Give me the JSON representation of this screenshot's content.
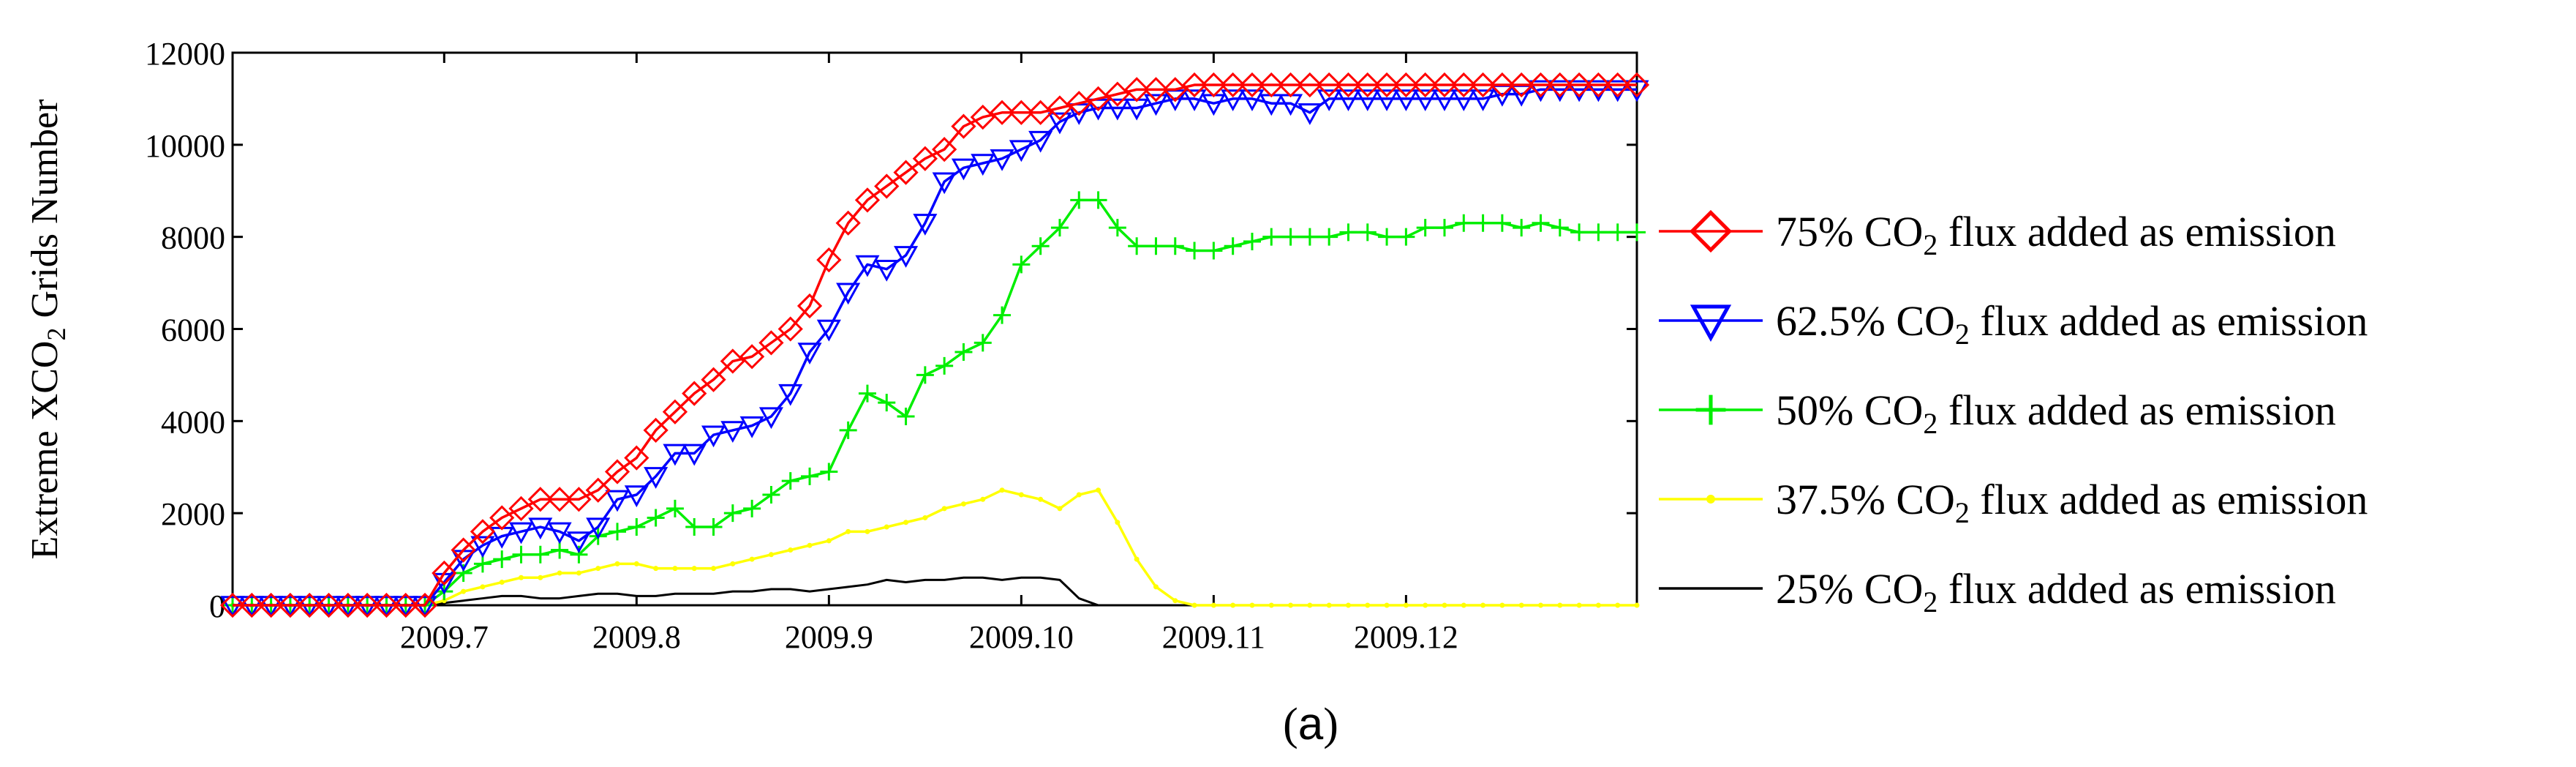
{
  "chart_data": {
    "type": "line",
    "title": "",
    "xlabel": "",
    "ylabel": "Extreme XCO2 Grids Number",
    "ylabel_parts": {
      "before": "Extreme XCO",
      "sub": "2",
      "after": " Grids Number"
    },
    "caption": {
      "open": "(",
      "letter": "a",
      "close": ")"
    },
    "ylim": [
      0,
      12000
    ],
    "yticks": [
      0,
      2000,
      4000,
      6000,
      8000,
      10000,
      12000
    ],
    "ytick_labels": [
      "0",
      "2000",
      "4000",
      "6000",
      "8000",
      "10000",
      "12000"
    ],
    "xlim": [
      0,
      73
    ],
    "xticks": [
      11,
      21,
      31,
      41,
      51,
      61
    ],
    "xtick_labels": [
      "2009.7",
      "2009.8",
      "2009.9",
      "2009.10",
      "2009.11",
      "2009.12"
    ],
    "grid": false,
    "legend_position": "right",
    "series": [
      {
        "name": "75% CO2 flux added as emission",
        "label_before": "75% CO",
        "label_sub": "2",
        "label_after": " flux added as emission",
        "color": "#ff0000",
        "marker": "diamond",
        "values": [
          0,
          0,
          0,
          0,
          0,
          0,
          0,
          0,
          0,
          0,
          0,
          700,
          1200,
          1600,
          1900,
          2100,
          2300,
          2300,
          2300,
          2500,
          2900,
          3200,
          3800,
          4200,
          4600,
          4900,
          5300,
          5400,
          5700,
          6000,
          6500,
          7500,
          8300,
          8800,
          9100,
          9400,
          9700,
          9900,
          10400,
          10600,
          10700,
          10700,
          10700,
          10800,
          10900,
          11000,
          11100,
          11200,
          11200,
          11200,
          11300,
          11300,
          11300,
          11300,
          11300,
          11300,
          11300,
          11300,
          11300,
          11300,
          11300,
          11300,
          11300,
          11300,
          11300,
          11300,
          11300,
          11300,
          11300,
          11300,
          11300,
          11300,
          11300,
          11300
        ]
      },
      {
        "name": "62.5% CO2 flux  added as emission",
        "label_before": "62.5% CO",
        "label_sub": "2",
        "label_after": " flux  added as emission",
        "color": "#0000ff",
        "marker": "triangle-down",
        "values": [
          0,
          0,
          0,
          0,
          0,
          0,
          0,
          0,
          0,
          0,
          0,
          500,
          1000,
          1300,
          1500,
          1600,
          1700,
          1600,
          1400,
          1700,
          2300,
          2400,
          2800,
          3300,
          3300,
          3700,
          3800,
          3900,
          4100,
          4600,
          5500,
          6000,
          6800,
          7400,
          7300,
          7600,
          8300,
          9200,
          9500,
          9600,
          9700,
          9900,
          10100,
          10500,
          10700,
          10800,
          10800,
          10800,
          10900,
          11000,
          11000,
          10900,
          11000,
          11000,
          10900,
          10900,
          10700,
          11000,
          11000,
          11000,
          11000,
          11000,
          11000,
          11000,
          11000,
          11000,
          11100,
          11100,
          11200,
          11200,
          11200,
          11200,
          11200,
          11200
        ]
      },
      {
        "name": "50% CO2 flux  added as emission",
        "label_before": "50% CO",
        "label_sub": "2",
        "label_after": " flux  added as emission",
        "color": "#00ee00",
        "marker": "plus",
        "values": [
          0,
          0,
          0,
          0,
          0,
          0,
          0,
          0,
          0,
          0,
          0,
          300,
          700,
          900,
          1000,
          1100,
          1100,
          1200,
          1100,
          1500,
          1600,
          1700,
          1900,
          2100,
          1700,
          1700,
          2000,
          2100,
          2400,
          2700,
          2800,
          2900,
          3800,
          4600,
          4400,
          4100,
          5000,
          5200,
          5500,
          5700,
          6300,
          7400,
          7800,
          8200,
          8800,
          8800,
          8200,
          7800,
          7800,
          7800,
          7700,
          7700,
          7800,
          7900,
          8000,
          8000,
          8000,
          8000,
          8100,
          8100,
          8000,
          8000,
          8200,
          8200,
          8300,
          8300,
          8300,
          8200,
          8300,
          8200,
          8100,
          8100,
          8100,
          8100
        ]
      },
      {
        "name": "37.5% CO2 flux added as emission",
        "label_before": "37.5% CO",
        "label_sub": "2",
        "label_after": " flux added as emission",
        "color": "#ffff00",
        "marker": "dot",
        "values": [
          0,
          0,
          0,
          0,
          0,
          0,
          0,
          0,
          0,
          0,
          0,
          100,
          300,
          400,
          500,
          600,
          600,
          700,
          700,
          800,
          900,
          900,
          800,
          800,
          800,
          800,
          900,
          1000,
          1100,
          1200,
          1300,
          1400,
          1600,
          1600,
          1700,
          1800,
          1900,
          2100,
          2200,
          2300,
          2500,
          2400,
          2300,
          2100,
          2400,
          2500,
          1800,
          1000,
          400,
          100,
          0,
          0,
          0,
          0,
          0,
          0,
          0,
          0,
          0,
          0,
          0,
          0,
          0,
          0,
          0,
          0,
          0,
          0,
          0,
          0,
          0,
          0,
          0,
          0
        ]
      },
      {
        "name": "25% CO2 flux added as emission",
        "label_before": "25% CO",
        "label_sub": "2",
        "label_after": " flux added as emission",
        "color": "#000000",
        "marker": "none",
        "values": [
          0,
          0,
          0,
          0,
          0,
          0,
          0,
          0,
          0,
          0,
          0,
          50,
          100,
          150,
          200,
          200,
          150,
          150,
          200,
          250,
          250,
          200,
          200,
          250,
          250,
          250,
          300,
          300,
          350,
          350,
          300,
          350,
          400,
          450,
          550,
          500,
          550,
          550,
          600,
          600,
          550,
          600,
          600,
          550,
          150,
          0,
          0,
          0,
          0,
          0,
          0,
          0,
          0,
          0,
          0,
          0,
          0,
          0,
          0,
          0,
          0,
          0,
          0,
          0,
          0,
          0,
          0,
          0,
          0,
          0,
          0,
          0,
          0,
          0
        ]
      }
    ]
  }
}
